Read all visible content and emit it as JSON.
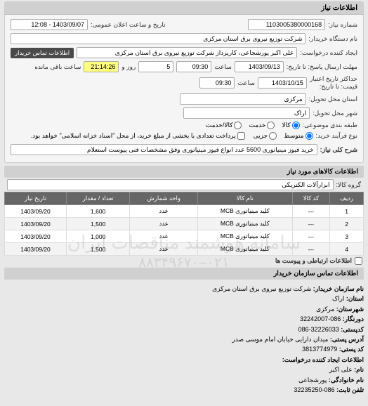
{
  "panel1_title": "اطلاعات نیاز",
  "fields": {
    "need_no_lbl": "شماره نیاز:",
    "need_no": "1103005380000168",
    "public_date_lbl": "تاریخ و ساعت اعلان عمومی:",
    "public_date": "1403/09/07 - 12:08",
    "buyer_org_lbl": "نام دستگاه خریدار:",
    "buyer_org": "شرکت توزیع نیروی برق استان مرکزی",
    "creator_lbl": "ایجاد کننده درخواست:",
    "creator": "علی اکبر پورشجاعی، کارپرداز شرکت توزیع نیروی برق استان مرکزی",
    "contact_badge": "اطلاعات تماس خریدار",
    "recv_until_lbl": "مهلت ارسال پاسخ: تا تاریخ:",
    "recv_date": "1403/09/13",
    "recv_time_lbl": "ساعت",
    "recv_time": "09:30",
    "days_lbl": "روز و",
    "days": "5",
    "remain_lbl": "ساعت باقی مانده",
    "remain": "21:14:26",
    "valid_until_lbl": "حداکثر تاریخ اعتبار\nقیمت: تا تاریخ:",
    "valid_date": "1403/10/15",
    "valid_time": "09:30",
    "delivery_state_lbl": "استان محل تحویل:",
    "delivery_state": "مرکزی",
    "delivery_city_lbl": "شهر محل تحویل:",
    "delivery_city": "اراک",
    "package_lbl": "طبقه بندی موضوعی:",
    "pkg_goods": "کالا",
    "pkg_service": "خدمت",
    "pkg_both": "کالا/خدمت",
    "buy_type_lbl": "نوع فرآیند خرید:",
    "bt_small": "متوسط",
    "bt_partial": "جزیی",
    "pay_note": "پرداخت تعدادی با بخشی از مبلغ خرید، از محل \"اسناد خزانه اسلامی\" خواهد بود.",
    "need_desc_lbl": "شرح کلی نیاز:",
    "need_desc": "خرید فیوز مینیاتوری 5600 عدد انواع فیوز مینیاتوری وفق مشخصات فنی پیوست استعلام"
  },
  "goods_title": "اطلاعات کالاهای مورد نیاز",
  "goods_group_lbl": "گروه کالا:",
  "goods_group": "ابزارآلات الکتریکی",
  "table": {
    "headers": [
      "ردیف",
      "کد کالا",
      "نام کالا",
      "واحد شمارش",
      "تعداد / مقدار",
      "تاریخ نیاز"
    ],
    "rows": [
      [
        "1",
        "---",
        "کلید مینیاتوری MCB",
        "عدد",
        "1,600",
        "1403/09/20"
      ],
      [
        "2",
        "---",
        "کلید مینیاتوری MCB",
        "عدد",
        "1,500",
        "1403/09/20"
      ],
      [
        "3",
        "---",
        "کلید مینیاتوری MCB",
        "عدد",
        "1,000",
        "1403/09/20"
      ],
      [
        "4",
        "---",
        "کلید مینیاتوری MCB",
        "عدد",
        "1,500",
        "1403/09/20"
      ]
    ]
  },
  "more_checkbox": "اطلاعات ارتباطی و پیوست ها",
  "footer_title": "اطلاعات تماس سازمان خریدار",
  "footer": {
    "org_lbl": "نام سازمان خریدار:",
    "org": "شرکت توزیع نیروی برق استان مرکزی",
    "state_lbl": "استان:",
    "state": "اراک",
    "city_lbl": "شهرستان:",
    "city": "مرکزی",
    "fax_lbl": "دورنگار:",
    "fax": "086-32242007",
    "post_lbl": "کدپستی:",
    "post": "32226033-086",
    "addr_lbl": "آدرس پستی:",
    "addr": "میدان دارایی خیابان امام موسی صدر",
    "postcode_lbl": "کد پستی:",
    "postcode": "3813774979",
    "creator2_lbl": "اطلاعات ایجاد کننده درخواست:",
    "name_lbl": "نام:",
    "name": "علی اکبر",
    "family_lbl": "نام خانوادگی:",
    "family": "پورشجاعی",
    "tel_lbl": "تلفن ثابت:",
    "tel": "086-32235250"
  },
  "watermark": "سامانه هوشمند مناقصات ایران",
  "watermark2": "۰۲۱–۸۸۳۴۹۶۷۰"
}
